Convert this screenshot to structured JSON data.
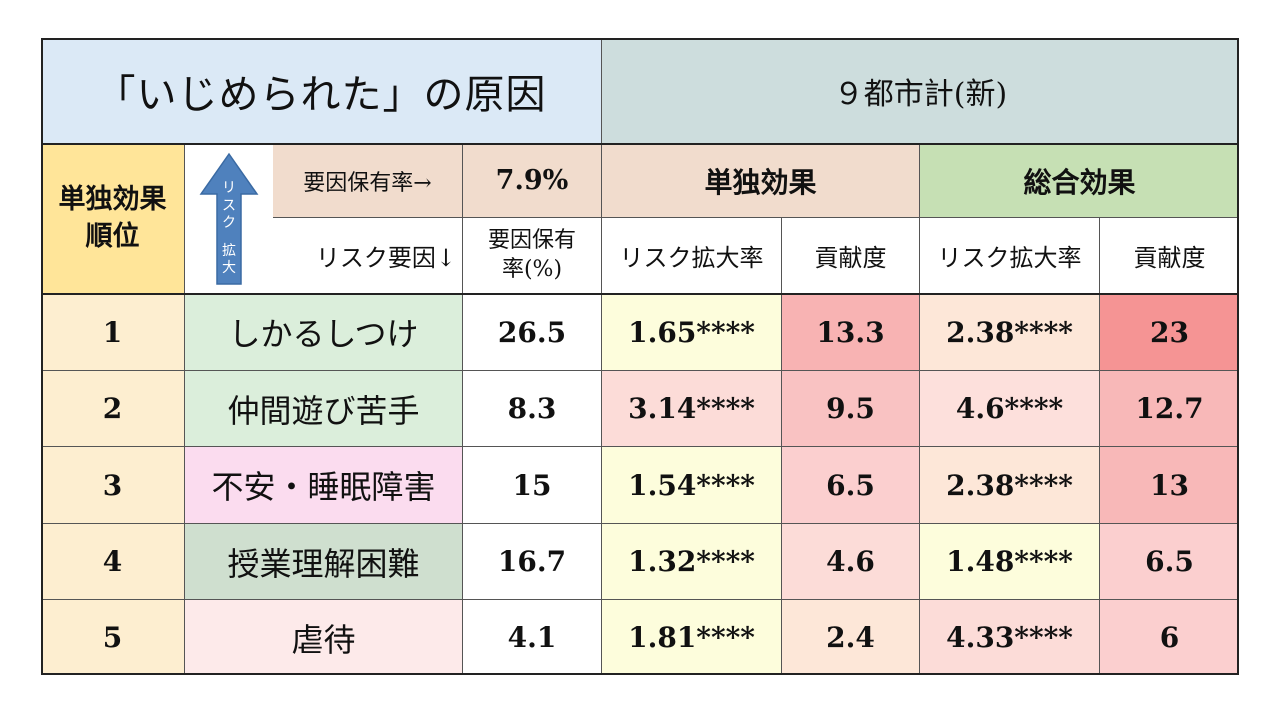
{
  "title": "「いじめられた」の原因",
  "region": "９都市計(新)",
  "rank_header": [
    "単独効果",
    "順位"
  ],
  "arrow_label": [
    "リ",
    "ス",
    "ク",
    "拡",
    "大"
  ],
  "prevalence_label": "要因保有率→",
  "prevalence_value": "7.9%",
  "risk_factor_label": "リスク要因↓",
  "factor_rate_header": [
    "要因保有",
    "率(%)"
  ],
  "single_effect": "単独効果",
  "total_effect": "総合効果",
  "risk_rate_header": "リスク拡大率",
  "contribution_header": "貢献度",
  "rows": [
    {
      "rank": "1",
      "factor": "しかるしつけ",
      "rate": "26.5",
      "s_risk": "1.65****",
      "s_contrib": "13.3",
      "t_risk": "2.38****",
      "t_contrib": "23"
    },
    {
      "rank": "2",
      "factor": "仲間遊び苦手",
      "rate": "8.3",
      "s_risk": "3.14****",
      "s_contrib": "9.5",
      "t_risk": "4.6****",
      "t_contrib": "12.7"
    },
    {
      "rank": "3",
      "factor": "不安・睡眠障害",
      "rate": "15",
      "s_risk": "1.54****",
      "s_contrib": "6.5",
      "t_risk": "2.38****",
      "t_contrib": "13"
    },
    {
      "rank": "4",
      "factor": "授業理解困難",
      "rate": "16.7",
      "s_risk": "1.32****",
      "s_contrib": "4.6",
      "t_risk": "1.48****",
      "t_contrib": "6.5"
    },
    {
      "rank": "5",
      "factor": "虐待",
      "rate": "4.1",
      "s_risk": "1.81****",
      "s_contrib": "2.4",
      "t_risk": "4.33****",
      "t_contrib": "6"
    }
  ],
  "colors": {
    "title_bg": "#dbe9f6",
    "region_bg": "#cddddd",
    "rank_bg": "#ffe599",
    "rank_cell_bg": "#fdeed0",
    "prevalence_bg": "#f1dccd",
    "single_bg": "#f1dccd",
    "total_bg": "#c6e0b4",
    "arrow": "#4f81bd"
  }
}
